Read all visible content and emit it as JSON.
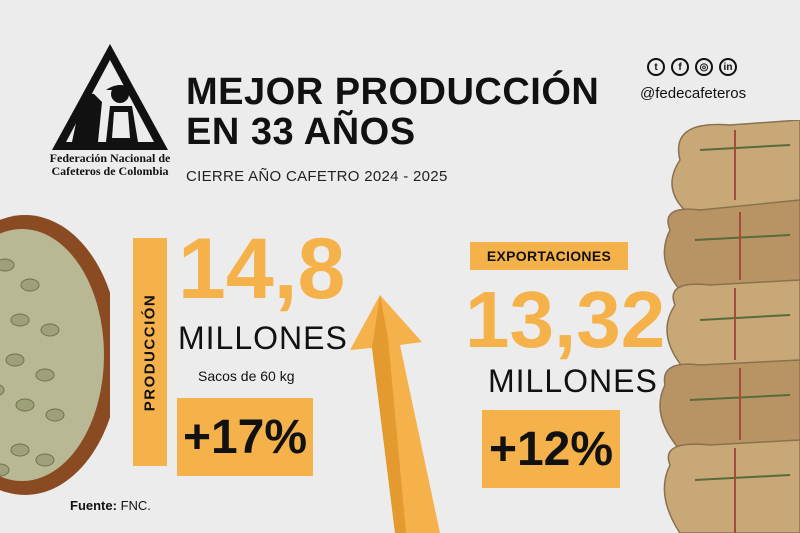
{
  "logo": {
    "org_line1": "Federación Nacional de",
    "org_line2": "Cafeteros de Colombia"
  },
  "header": {
    "title_line1": "MEJOR PRODUCCIÓN",
    "title_line2": "EN 33 AÑOS",
    "subtitle": "CIERRE AÑO CAFETRO 2024 - 2025"
  },
  "social": {
    "icons": [
      "twitter-icon",
      "facebook-icon",
      "instagram-icon",
      "linkedin-icon"
    ],
    "handle": "@fedecafeteros"
  },
  "production": {
    "label": "PRODUCCIÓN",
    "value": "14,8",
    "unit": "MILLONES",
    "sub": "Sacos de 60 kg",
    "change": "+17%"
  },
  "exports": {
    "label": "EXPORTACIONES",
    "value": "13,32",
    "unit": "MILLONES",
    "change": "+12%"
  },
  "source": {
    "prefix": "Fuente:",
    "text": "FNC."
  },
  "colors": {
    "accent": "#f5b14a",
    "background": "#ececec",
    "text": "#111111"
  }
}
